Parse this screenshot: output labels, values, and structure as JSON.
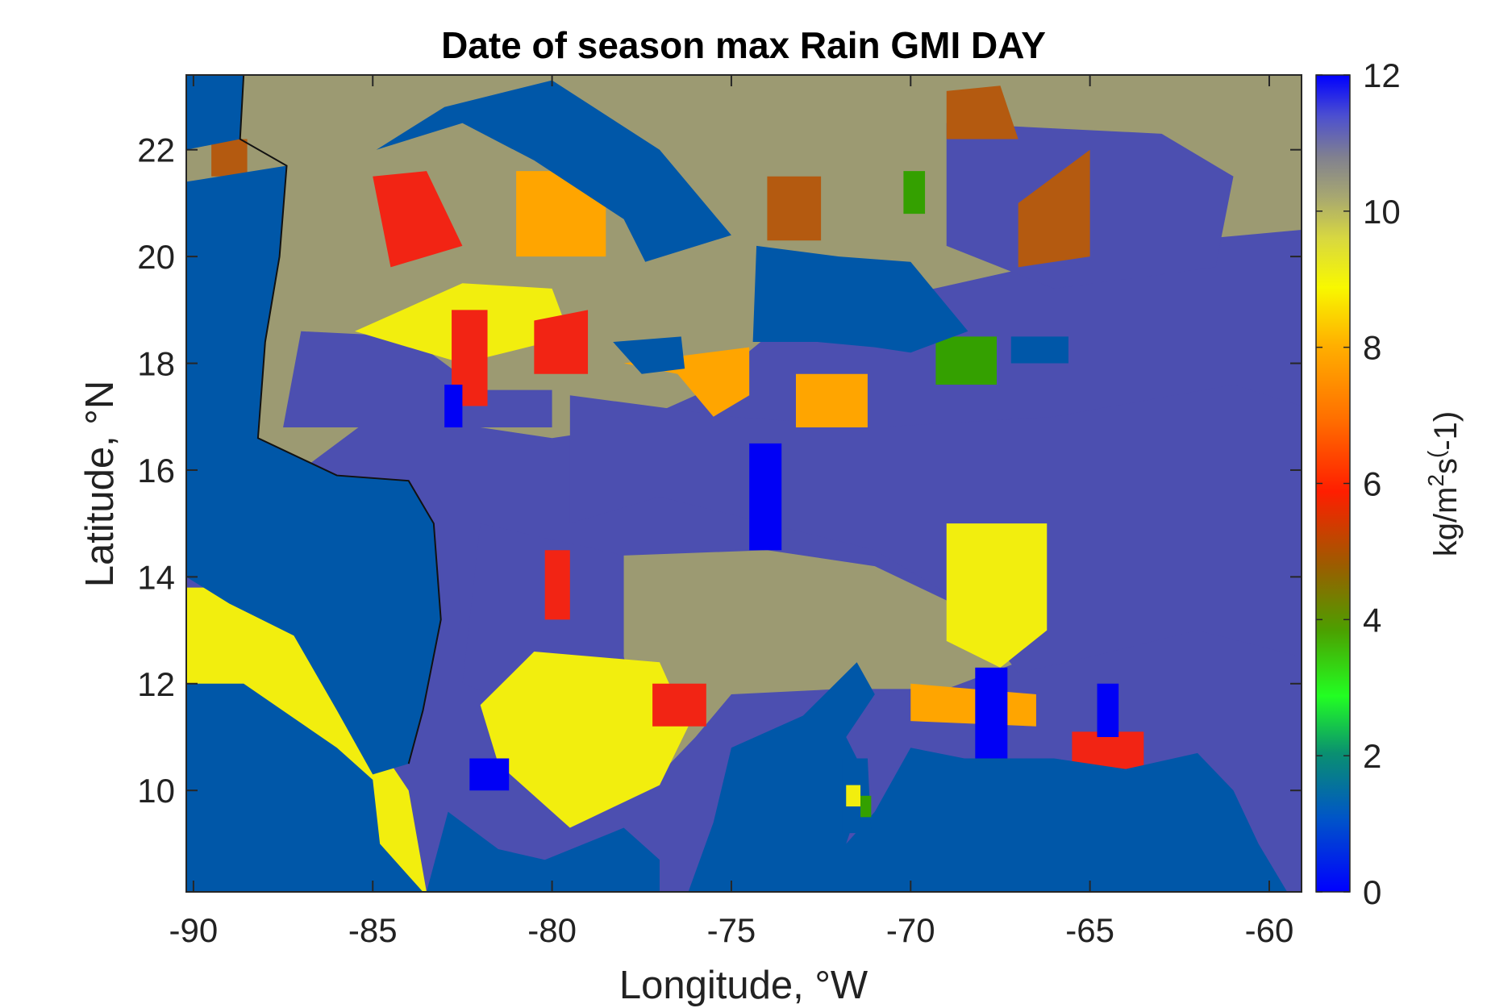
{
  "chart_data": {
    "type": "heatmap",
    "title": "Date of season max Rain GMI DAY",
    "xlabel": "Longitude, °W",
    "ylabel": "Latitude, °N",
    "xlim": [
      -90.2,
      -59.1
    ],
    "ylim": [
      8.1,
      23.4
    ],
    "xticks": [
      -90,
      -85,
      -80,
      -75,
      -70,
      -65,
      -60
    ],
    "xtick_labels": [
      "-90",
      "-85",
      "-80",
      "-75",
      "-70",
      "-65",
      "-60"
    ],
    "yticks": [
      10,
      12,
      14,
      16,
      18,
      20,
      22
    ],
    "ytick_labels": [
      "10",
      "12",
      "14",
      "16",
      "18",
      "20",
      "22"
    ],
    "colorbar": {
      "label_base": "kg/m",
      "label_sup1": "2",
      "label_mid": "s",
      "label_sup2": "(",
      "label_end": "-1)",
      "range": [
        0,
        12
      ],
      "ticks": [
        0,
        2,
        4,
        6,
        8,
        10,
        12
      ],
      "tick_labels": [
        "0",
        "2",
        "4",
        "6",
        "8",
        "10",
        "12"
      ],
      "colormap": "parula-jet-like",
      "colors": [
        "#0000ff",
        "#0045d0",
        "#007fa0",
        "#00cc30",
        "#22ff22",
        "#4ca000",
        "#6e6a00",
        "#ff2a00",
        "#ff6a00",
        "#ffb000",
        "#f0f000",
        "#c9c948",
        "#8c8c80",
        "#5050c0",
        "#0000ff"
      ]
    },
    "regions": [
      {
        "name": "ocean / no data",
        "value": 0.5,
        "color": "#0057a8"
      },
      {
        "name": "caribbean sea east",
        "value": 11.2,
        "color": "#4c4fb0"
      },
      {
        "name": "central band",
        "value": 10.0,
        "color": "#9c9a72"
      },
      {
        "name": "south yellow region",
        "value": 9.0,
        "color": "#f2ee0e"
      },
      {
        "name": "orange patches",
        "value": 7.8,
        "color": "#ffa500"
      },
      {
        "name": "red patches",
        "value": 6.2,
        "color": "#f22414"
      },
      {
        "name": "brown patches",
        "value": 5.2,
        "color": "#b45a10"
      },
      {
        "name": "green patches",
        "value": 3.8,
        "color": "#34a000"
      },
      {
        "name": "blue patches",
        "value": 0.0,
        "color": "#0000f5"
      }
    ]
  }
}
